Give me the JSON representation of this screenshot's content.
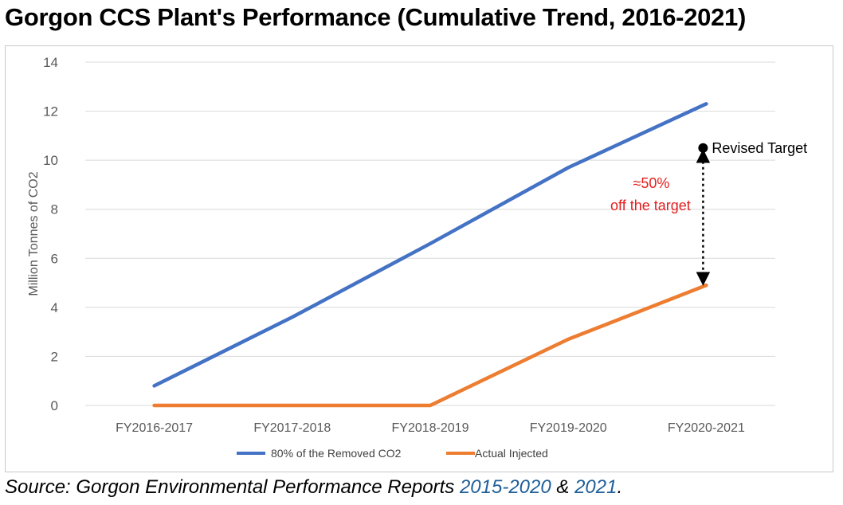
{
  "title": "Gorgon CCS Plant's Performance (Cumulative Trend, 2016-2021)",
  "source": {
    "prefix": "Source: Gorgon Environmental Performance Reports ",
    "link1": "2015-2020",
    "middle": " & ",
    "link2": "2021",
    "suffix": "."
  },
  "colors": {
    "series1": "#4472c4",
    "series2": "#ed7d31",
    "grid": "#d9d9d9",
    "annotation_red": "#e41e1e"
  },
  "chart_data": {
    "type": "line",
    "title": "Gorgon CCS Plant's Performance (Cumulative Trend, 2016-2021)",
    "xlabel": "",
    "ylabel": "Million Tonnes of CO2",
    "ylim": [
      0,
      14
    ],
    "yticks": [
      0,
      2,
      4,
      6,
      8,
      10,
      12,
      14
    ],
    "categories": [
      "FY2016-2017",
      "FY2017-2018",
      "FY2018-2019",
      "FY2019-2020",
      "FY2020-2021"
    ],
    "series": [
      {
        "name": "80% of the Removed CO2",
        "values": [
          0.8,
          3.6,
          6.6,
          9.7,
          12.3
        ]
      },
      {
        "name": "Actual Injected",
        "values": [
          0.0,
          0.0,
          0.0,
          2.7,
          4.9
        ]
      }
    ],
    "legend_position": "bottom",
    "grid": true,
    "annotations": {
      "revised_target_label": "Revised Target",
      "revised_target_value": 10.5,
      "gap_label_line1": "≈50%",
      "gap_label_line2": "off the target"
    }
  }
}
